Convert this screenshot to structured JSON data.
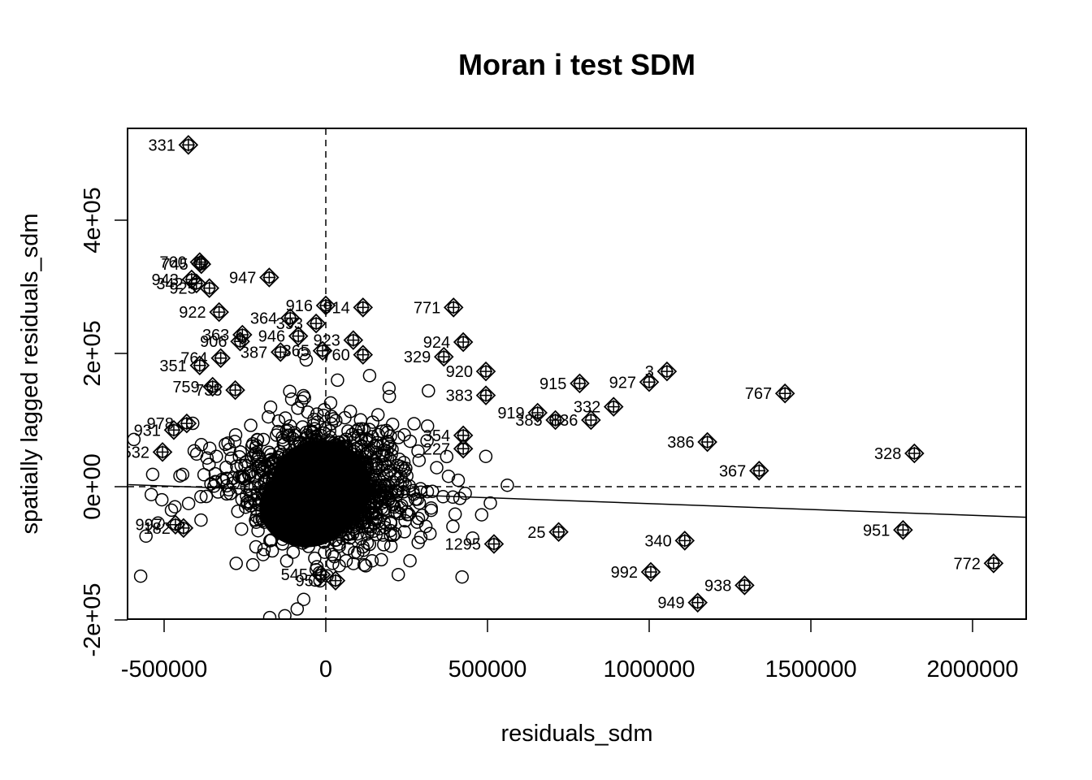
{
  "chart_data": {
    "type": "scatter",
    "title": "Moran i test SDM",
    "xlabel": "residuals_sdm",
    "ylabel": "spatially lagged residuals_sdm",
    "xlim": [
      -610000,
      2170000
    ],
    "ylim": [
      -200000,
      540000
    ],
    "xticks": [
      {
        "value": -500000,
        "label": "-500000"
      },
      {
        "value": 0,
        "label": "0"
      },
      {
        "value": 500000,
        "label": "500000"
      },
      {
        "value": 1000000,
        "label": "1000000"
      },
      {
        "value": 1500000,
        "label": "1500000"
      },
      {
        "value": 2000000,
        "label": "2000000"
      }
    ],
    "yticks": [
      {
        "value": -200000,
        "label": "-2e+05"
      },
      {
        "value": 0,
        "label": "0e+00"
      },
      {
        "value": 200000,
        "label": "2e+05"
      },
      {
        "value": 400000,
        "label": "4e+05"
      }
    ],
    "mean_x": 0,
    "mean_y": 0,
    "regression": {
      "x1": -610000,
      "y1": 3000,
      "x2": 2170000,
      "y2": -46000
    },
    "grid": false,
    "legend": "none",
    "influential": [
      {
        "label": "331",
        "x": -425000,
        "y": 513000
      },
      {
        "label": "760",
        "x": -390000,
        "y": 337000
      },
      {
        "label": "745",
        "x": -385000,
        "y": 334000
      },
      {
        "label": "947",
        "x": -175000,
        "y": 314000
      },
      {
        "label": "943",
        "x": -415000,
        "y": 311000
      },
      {
        "label": "342",
        "x": -400000,
        "y": 305000
      },
      {
        "label": "925",
        "x": -360000,
        "y": 298000
      },
      {
        "label": "922",
        "x": -330000,
        "y": 262000
      },
      {
        "label": "916",
        "x": 0,
        "y": 272000
      },
      {
        "label": "914",
        "x": 115000,
        "y": 269000
      },
      {
        "label": "771",
        "x": 395000,
        "y": 269000
      },
      {
        "label": "364",
        "x": -110000,
        "y": 253000
      },
      {
        "label": "393",
        "x": -30000,
        "y": 245000
      },
      {
        "label": "363",
        "x": -258000,
        "y": 228000
      },
      {
        "label": "946",
        "x": -85000,
        "y": 226000
      },
      {
        "label": "906",
        "x": -265000,
        "y": 218000
      },
      {
        "label": "923",
        "x": 85000,
        "y": 220000
      },
      {
        "label": "924",
        "x": 425000,
        "y": 217000
      },
      {
        "label": "387",
        "x": -140000,
        "y": 202000
      },
      {
        "label": "365",
        "x": -10000,
        "y": 204000
      },
      {
        "label": "760",
        "x": 115000,
        "y": 198000
      },
      {
        "label": "764",
        "x": -325000,
        "y": 193000
      },
      {
        "label": "329",
        "x": 365000,
        "y": 195000
      },
      {
        "label": "351",
        "x": -390000,
        "y": 182000
      },
      {
        "label": "920",
        "x": 495000,
        "y": 173000
      },
      {
        "label": "3",
        "x": 1055000,
        "y": 173000
      },
      {
        "label": "759",
        "x": -350000,
        "y": 150000
      },
      {
        "label": "735",
        "x": -280000,
        "y": 145000
      },
      {
        "label": "915",
        "x": 785000,
        "y": 155000
      },
      {
        "label": "927",
        "x": 1000000,
        "y": 157000
      },
      {
        "label": "767",
        "x": 1420000,
        "y": 140000
      },
      {
        "label": "383",
        "x": 495000,
        "y": 137000
      },
      {
        "label": "332",
        "x": 890000,
        "y": 120000
      },
      {
        "label": "919",
        "x": 655000,
        "y": 111000
      },
      {
        "label": "385",
        "x": 710000,
        "y": 100000
      },
      {
        "label": "836",
        "x": 820000,
        "y": 100000
      },
      {
        "label": "978",
        "x": -430000,
        "y": 95000
      },
      {
        "label": "931",
        "x": -470000,
        "y": 85000
      },
      {
        "label": "354",
        "x": 425000,
        "y": 77000
      },
      {
        "label": "386",
        "x": 1180000,
        "y": 67000
      },
      {
        "label": "532",
        "x": -505000,
        "y": 52000
      },
      {
        "label": "227",
        "x": 425000,
        "y": 57000
      },
      {
        "label": "328",
        "x": 1820000,
        "y": 50000
      },
      {
        "label": "367",
        "x": 1340000,
        "y": 24000
      },
      {
        "label": "997",
        "x": -465000,
        "y": -57000
      },
      {
        "label": "182",
        "x": -440000,
        "y": -62000
      },
      {
        "label": "25",
        "x": 720000,
        "y": -68000
      },
      {
        "label": "951",
        "x": 1785000,
        "y": -65000
      },
      {
        "label": "340",
        "x": 1110000,
        "y": -81000
      },
      {
        "label": "1295",
        "x": 520000,
        "y": -86000
      },
      {
        "label": "772",
        "x": 2065000,
        "y": -115000
      },
      {
        "label": "992",
        "x": 1005000,
        "y": -128000
      },
      {
        "label": "545",
        "x": -15000,
        "y": -132000
      },
      {
        "label": "953",
        "x": 30000,
        "y": -141000
      },
      {
        "label": "938",
        "x": 1295000,
        "y": -148000
      },
      {
        "label": "949",
        "x": 1150000,
        "y": -174000
      }
    ]
  }
}
